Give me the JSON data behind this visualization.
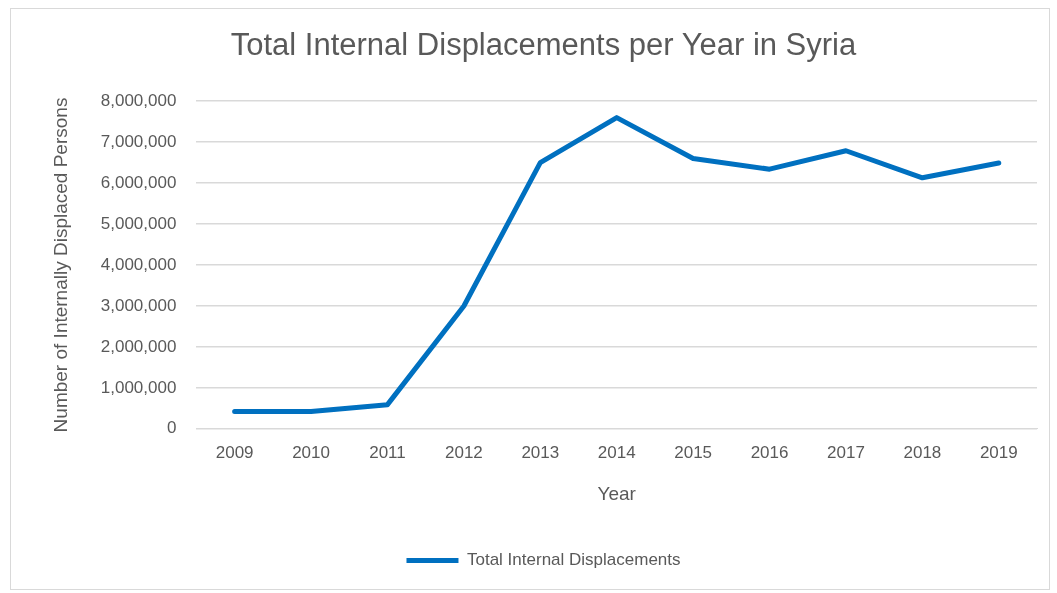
{
  "chart_data": {
    "type": "line",
    "title": "Total Internal Displacements per Year in Syria",
    "xlabel": "Year",
    "ylabel": "Number of Internally Displaced Persons",
    "categories": [
      "2009",
      "2010",
      "2011",
      "2012",
      "2013",
      "2014",
      "2015",
      "2016",
      "2017",
      "2018",
      "2019"
    ],
    "series": [
      {
        "name": "Total Internal Displacements",
        "color": "#0070c0",
        "values": [
          420000,
          420000,
          590000,
          3000000,
          6500000,
          7600000,
          6600000,
          6340000,
          6790000,
          6130000,
          6490000
        ]
      }
    ],
    "ylim": [
      0,
      8000000
    ],
    "yticks": [
      {
        "value": 0,
        "label": "0"
      },
      {
        "value": 1000000,
        "label": "1,000,000"
      },
      {
        "value": 2000000,
        "label": "2,000,000"
      },
      {
        "value": 3000000,
        "label": "3,000,000"
      },
      {
        "value": 4000000,
        "label": "4,000,000"
      },
      {
        "value": 5000000,
        "label": "5,000,000"
      },
      {
        "value": 6000000,
        "label": "6,000,000"
      },
      {
        "value": 7000000,
        "label": "7,000,000"
      },
      {
        "value": 8000000,
        "label": "8,000,000"
      }
    ],
    "grid": "y",
    "legend": "bottom",
    "marker": "none",
    "line_style": "solid"
  }
}
